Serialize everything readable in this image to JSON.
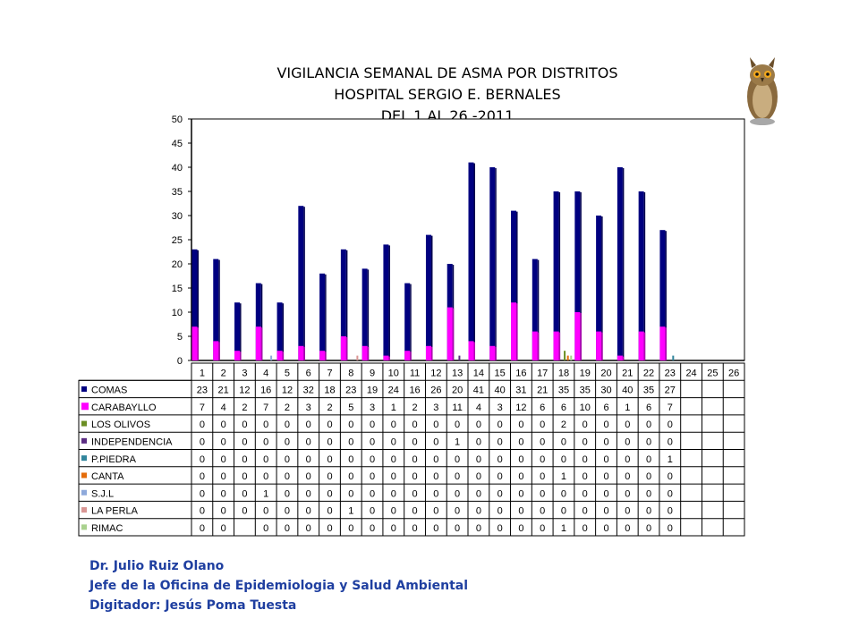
{
  "title_lines": [
    "VIGILANCIA SEMANAL DE ASMA POR DISTRITOS",
    "HOSPITAL SERGIO E. BERNALES",
    "DEL 1 AL 26 -2011"
  ],
  "footer": {
    "line1": "Dr.  Julio Ruiz Olano",
    "line2": "Jefe de la Oficina de Epidemiologia y  Salud Ambiental",
    "line3": "Digitador: Jesús Poma Tuesta"
  },
  "chart_data": {
    "type": "bar",
    "categories": [
      "1",
      "2",
      "3",
      "4",
      "5",
      "6",
      "7",
      "8",
      "9",
      "10",
      "11",
      "12",
      "13",
      "14",
      "15",
      "16",
      "17",
      "18",
      "19",
      "20",
      "21",
      "22",
      "23",
      "24",
      "25",
      "26"
    ],
    "ylim": [
      0,
      50
    ],
    "yticks": [
      0,
      5,
      10,
      15,
      20,
      25,
      30,
      35,
      40,
      45,
      50
    ],
    "series": [
      {
        "name": "COMAS",
        "color": "#000080",
        "values": [
          23,
          21,
          12,
          16,
          12,
          32,
          18,
          23,
          19,
          24,
          16,
          26,
          20,
          41,
          40,
          31,
          21,
          35,
          35,
          30,
          40,
          35,
          27,
          null,
          null,
          null
        ]
      },
      {
        "name": "CARABAYLLO",
        "color": "#ff00ff",
        "values": [
          7,
          4,
          2,
          7,
          2,
          3,
          2,
          5,
          3,
          1,
          2,
          3,
          11,
          4,
          3,
          12,
          6,
          6,
          10,
          6,
          1,
          6,
          7,
          null,
          null,
          null
        ]
      },
      {
        "name": "LOS OLIVOS",
        "color": "#6b8e23",
        "values": [
          0,
          0,
          0,
          0,
          0,
          0,
          0,
          0,
          0,
          0,
          0,
          0,
          0,
          0,
          0,
          0,
          0,
          2,
          0,
          0,
          0,
          0,
          0,
          null,
          null,
          null
        ]
      },
      {
        "name": "INDEPENDENCIA",
        "color": "#5b2c83",
        "values": [
          0,
          0,
          0,
          0,
          0,
          0,
          0,
          0,
          0,
          0,
          0,
          0,
          1,
          0,
          0,
          0,
          0,
          0,
          0,
          0,
          0,
          0,
          0,
          null,
          null,
          null
        ]
      },
      {
        "name": "P.PIEDRA",
        "color": "#31859c",
        "values": [
          0,
          0,
          0,
          0,
          0,
          0,
          0,
          0,
          0,
          0,
          0,
          0,
          0,
          0,
          0,
          0,
          0,
          0,
          0,
          0,
          0,
          0,
          1,
          null,
          null,
          null
        ]
      },
      {
        "name": "CANTA",
        "color": "#e46c0a",
        "values": [
          0,
          0,
          0,
          0,
          0,
          0,
          0,
          0,
          0,
          0,
          0,
          0,
          0,
          0,
          0,
          0,
          0,
          1,
          0,
          0,
          0,
          0,
          0,
          null,
          null,
          null
        ]
      },
      {
        "name": "S.J.L",
        "color": "#8ea9db",
        "values": [
          0,
          0,
          0,
          1,
          0,
          0,
          0,
          0,
          0,
          0,
          0,
          0,
          0,
          0,
          0,
          0,
          0,
          0,
          0,
          0,
          0,
          0,
          0,
          null,
          null,
          null
        ]
      },
      {
        "name": "LA PERLA",
        "color": "#d99694",
        "values": [
          0,
          0,
          0,
          0,
          0,
          0,
          0,
          1,
          0,
          0,
          0,
          0,
          0,
          0,
          0,
          0,
          0,
          0,
          0,
          0,
          0,
          0,
          0,
          null,
          null,
          null
        ]
      },
      {
        "name": "RIMAC",
        "color": "#a9d18e",
        "values": [
          0,
          0,
          null,
          0,
          0,
          0,
          0,
          0,
          0,
          0,
          0,
          0,
          0,
          0,
          0,
          0,
          0,
          1,
          0,
          0,
          0,
          0,
          0,
          null,
          null,
          null
        ]
      }
    ]
  }
}
